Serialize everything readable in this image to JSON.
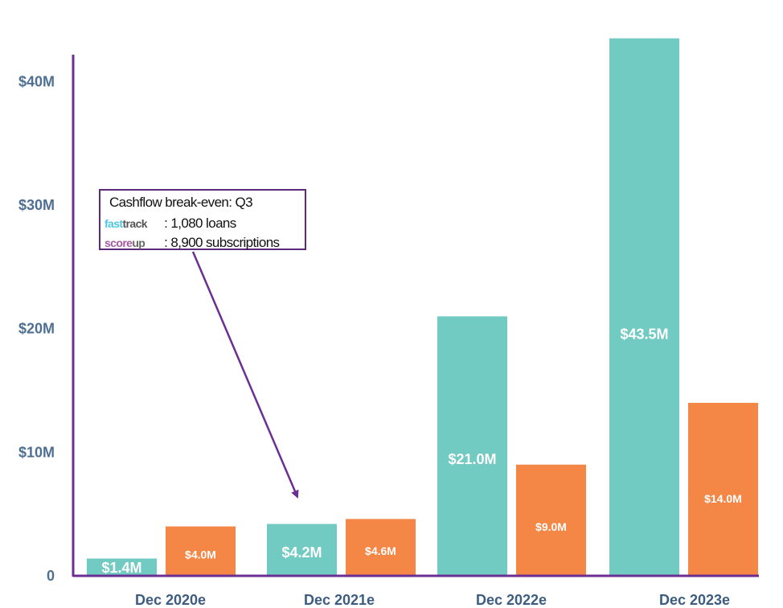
{
  "chart_data": {
    "type": "bar",
    "categories": [
      "Dec 2020e",
      "Dec 2021e",
      "Dec 2022e",
      "Dec 2023e"
    ],
    "series": [
      {
        "values": [
          1.4,
          4.2,
          21.0,
          43.5
        ],
        "labels": [
          "$1.4M",
          "$4.2M",
          "$21.0M",
          "$43.5M"
        ],
        "color": "#72cbc2"
      },
      {
        "values": [
          4.0,
          4.6,
          9.0,
          14.0
        ],
        "labels": [
          "$4.0M",
          "$4.6M",
          "$9.0M",
          "$14.0M"
        ],
        "color": "#f48646"
      }
    ],
    "yticks": [
      {
        "value": 0,
        "label": "0"
      },
      {
        "value": 10,
        "label": "$10M"
      },
      {
        "value": 20,
        "label": "$20M"
      },
      {
        "value": 30,
        "label": "$30M"
      },
      {
        "value": 40,
        "label": "$40M"
      }
    ],
    "ylim": [
      0,
      44
    ],
    "axis_color": "#6b2f93",
    "annotation": {
      "title": "Cashflow break-even: Q3",
      "rows": [
        {
          "brand_a": "fast",
          "brand_b": "track",
          "text": ": 1,080 loans"
        },
        {
          "brand_a": "score",
          "brand_b": "up",
          "text": ": 8,900 subscriptions"
        }
      ],
      "points_to": "Dec 2021e"
    }
  }
}
